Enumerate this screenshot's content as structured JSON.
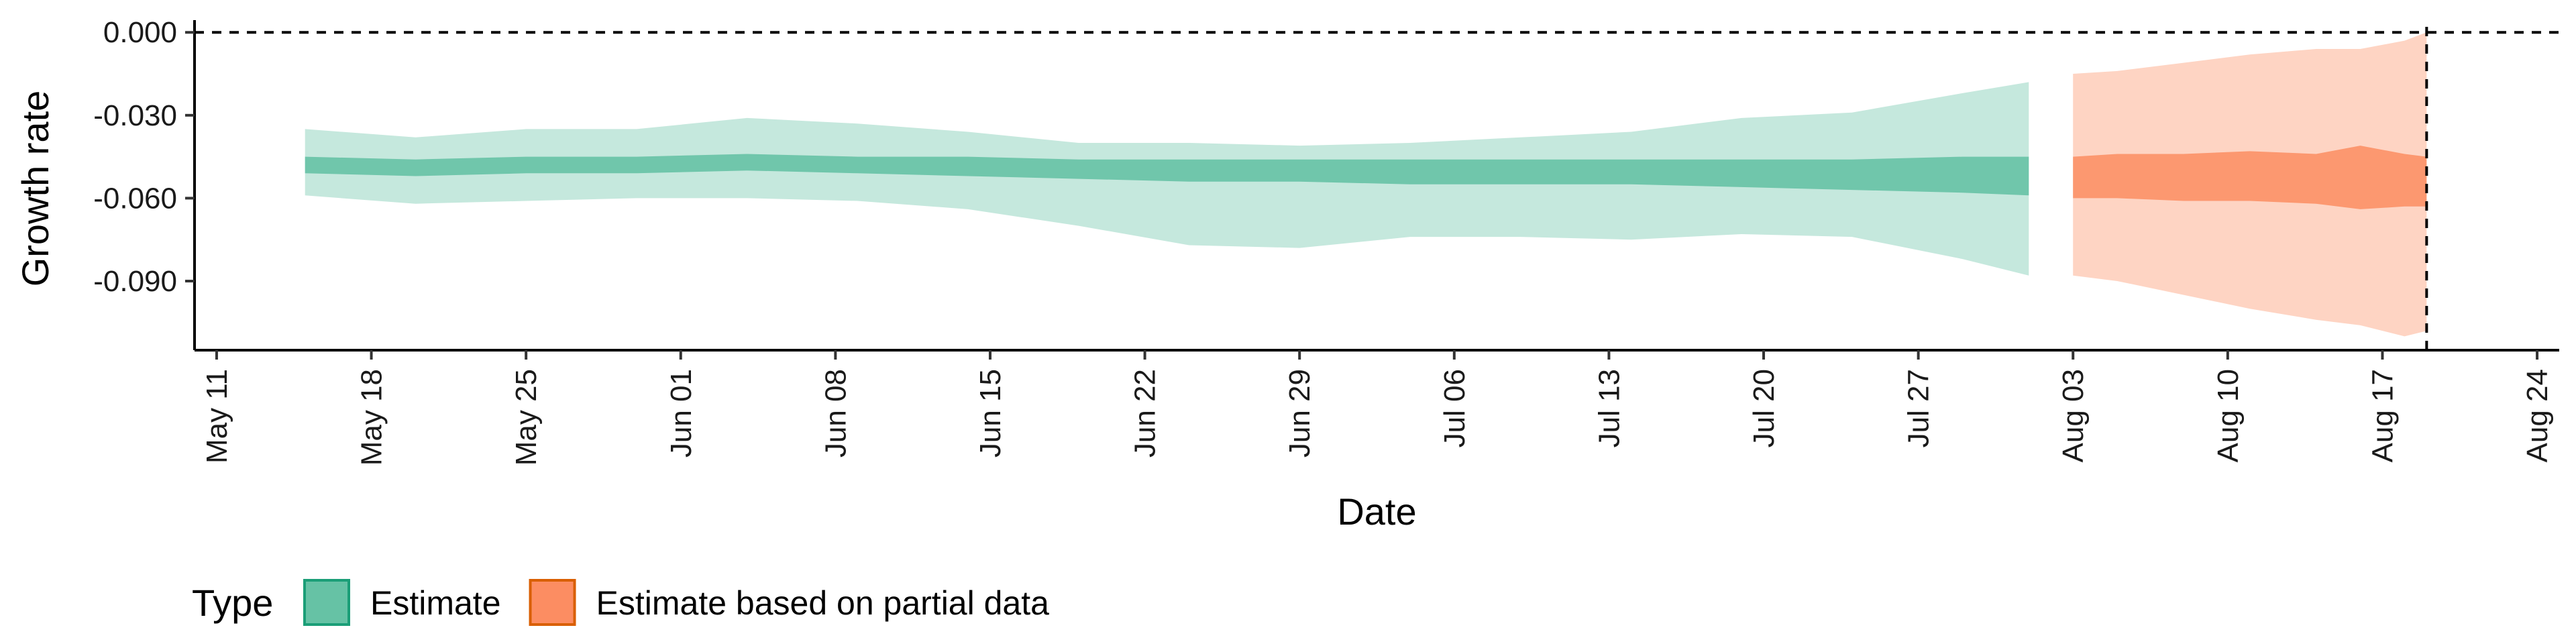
{
  "chart_data": {
    "type": "area",
    "xlabel": "Date",
    "ylabel": "Growth rate",
    "ylim": [
      -0.115,
      0.002
    ],
    "xlim": [
      "2020-05-10",
      "2020-08-25"
    ],
    "yticks": [
      {
        "value": 0.0,
        "label": "0.000"
      },
      {
        "value": -0.03,
        "label": "-0.030"
      },
      {
        "value": -0.06,
        "label": "-0.060"
      },
      {
        "value": -0.09,
        "label": "-0.090"
      }
    ],
    "xticks": [
      {
        "date": "2020-05-11",
        "label": "May 11"
      },
      {
        "date": "2020-05-18",
        "label": "May 18"
      },
      {
        "date": "2020-05-25",
        "label": "May 25"
      },
      {
        "date": "2020-06-01",
        "label": "Jun 01"
      },
      {
        "date": "2020-06-08",
        "label": "Jun 08"
      },
      {
        "date": "2020-06-15",
        "label": "Jun 15"
      },
      {
        "date": "2020-06-22",
        "label": "Jun 22"
      },
      {
        "date": "2020-06-29",
        "label": "Jun 29"
      },
      {
        "date": "2020-07-06",
        "label": "Jul 06"
      },
      {
        "date": "2020-07-13",
        "label": "Jul 13"
      },
      {
        "date": "2020-07-20",
        "label": "Jul 20"
      },
      {
        "date": "2020-07-27",
        "label": "Jul 27"
      },
      {
        "date": "2020-08-03",
        "label": "Aug 03"
      },
      {
        "date": "2020-08-10",
        "label": "Aug 10"
      },
      {
        "date": "2020-08-17",
        "label": "Aug 17"
      },
      {
        "date": "2020-08-24",
        "label": "Aug 24"
      }
    ],
    "reference_lines": {
      "horizontal_y": 0.0,
      "vertical_date": "2020-08-19",
      "style": "dashed"
    },
    "grid": false,
    "legend": {
      "title": "Type",
      "position": "bottom-left",
      "entries": [
        {
          "label": "Estimate",
          "fill": "#66c2a5",
          "stroke": "#1b9e77"
        },
        {
          "label": "Estimate based on partial data",
          "fill": "#fc8d62",
          "stroke": "#d95f02"
        }
      ]
    },
    "series": [
      {
        "name": "Estimate",
        "colors": {
          "band": "#66c2a5",
          "outer_opacity": 0.38,
          "inner_opacity": 0.9
        },
        "points": [
          {
            "date": "2020-05-15",
            "lower90": -0.059,
            "lower50": -0.051,
            "upper50": -0.045,
            "upper90": -0.035
          },
          {
            "date": "2020-05-20",
            "lower90": -0.062,
            "lower50": -0.052,
            "upper50": -0.046,
            "upper90": -0.038
          },
          {
            "date": "2020-05-25",
            "lower90": -0.061,
            "lower50": -0.051,
            "upper50": -0.045,
            "upper90": -0.035
          },
          {
            "date": "2020-05-30",
            "lower90": -0.06,
            "lower50": -0.051,
            "upper50": -0.045,
            "upper90": -0.035
          },
          {
            "date": "2020-06-04",
            "lower90": -0.06,
            "lower50": -0.05,
            "upper50": -0.044,
            "upper90": -0.031
          },
          {
            "date": "2020-06-09",
            "lower90": -0.061,
            "lower50": -0.051,
            "upper50": -0.045,
            "upper90": -0.033
          },
          {
            "date": "2020-06-14",
            "lower90": -0.064,
            "lower50": -0.052,
            "upper50": -0.045,
            "upper90": -0.036
          },
          {
            "date": "2020-06-19",
            "lower90": -0.07,
            "lower50": -0.053,
            "upper50": -0.046,
            "upper90": -0.04
          },
          {
            "date": "2020-06-24",
            "lower90": -0.077,
            "lower50": -0.054,
            "upper50": -0.046,
            "upper90": -0.04
          },
          {
            "date": "2020-06-29",
            "lower90": -0.078,
            "lower50": -0.054,
            "upper50": -0.046,
            "upper90": -0.041
          },
          {
            "date": "2020-07-04",
            "lower90": -0.074,
            "lower50": -0.055,
            "upper50": -0.046,
            "upper90": -0.04
          },
          {
            "date": "2020-07-09",
            "lower90": -0.074,
            "lower50": -0.055,
            "upper50": -0.046,
            "upper90": -0.038
          },
          {
            "date": "2020-07-14",
            "lower90": -0.075,
            "lower50": -0.055,
            "upper50": -0.046,
            "upper90": -0.036
          },
          {
            "date": "2020-07-19",
            "lower90": -0.073,
            "lower50": -0.056,
            "upper50": -0.046,
            "upper90": -0.031
          },
          {
            "date": "2020-07-24",
            "lower90": -0.074,
            "lower50": -0.057,
            "upper50": -0.046,
            "upper90": -0.029
          },
          {
            "date": "2020-07-29",
            "lower90": -0.082,
            "lower50": -0.058,
            "upper50": -0.045,
            "upper90": -0.022
          },
          {
            "date": "2020-08-01",
            "lower90": -0.088,
            "lower50": -0.059,
            "upper50": -0.045,
            "upper90": -0.018
          }
        ]
      },
      {
        "name": "Estimate based on partial data",
        "colors": {
          "band": "#fc8d62",
          "outer_opacity": 0.38,
          "inner_opacity": 0.85
        },
        "points": [
          {
            "date": "2020-08-03",
            "lower90": -0.088,
            "lower50": -0.06,
            "upper50": -0.045,
            "upper90": -0.015
          },
          {
            "date": "2020-08-05",
            "lower90": -0.09,
            "lower50": -0.06,
            "upper50": -0.044,
            "upper90": -0.014
          },
          {
            "date": "2020-08-08",
            "lower90": -0.095,
            "lower50": -0.061,
            "upper50": -0.044,
            "upper90": -0.011
          },
          {
            "date": "2020-08-11",
            "lower90": -0.1,
            "lower50": -0.061,
            "upper50": -0.043,
            "upper90": -0.008
          },
          {
            "date": "2020-08-14",
            "lower90": -0.104,
            "lower50": -0.062,
            "upper50": -0.044,
            "upper90": -0.006
          },
          {
            "date": "2020-08-16",
            "lower90": -0.106,
            "lower50": -0.064,
            "upper50": -0.041,
            "upper90": -0.006
          },
          {
            "date": "2020-08-18",
            "lower90": -0.11,
            "lower50": -0.063,
            "upper50": -0.044,
            "upper90": -0.003
          },
          {
            "date": "2020-08-19",
            "lower90": -0.108,
            "lower50": -0.063,
            "upper50": -0.045,
            "upper90": 0.0
          }
        ]
      }
    ]
  }
}
